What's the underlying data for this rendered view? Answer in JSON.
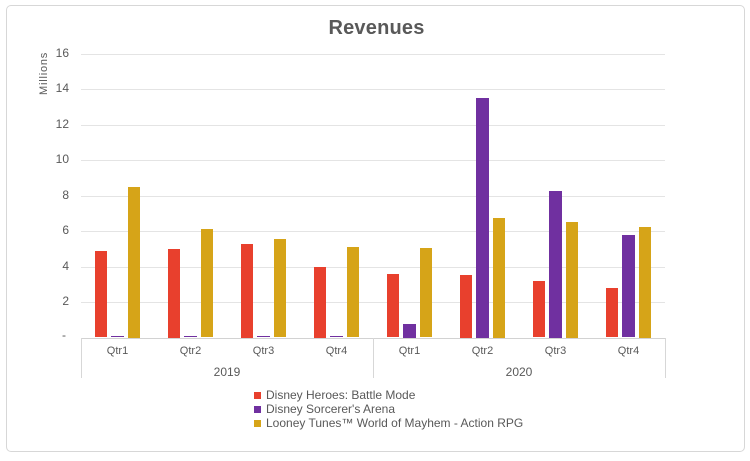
{
  "chart_data": {
    "type": "bar",
    "title": "Revenues",
    "ylabel": "Millions",
    "xlabel": "",
    "ylim": [
      0,
      16
    ],
    "ytick_step": 2,
    "zero_tick_label": "-",
    "grid": true,
    "legend_position": "bottom-left-aligned-block",
    "categories": [
      "Qtr1",
      "Qtr2",
      "Qtr3",
      "Qtr4",
      "Qtr1",
      "Qtr2",
      "Qtr3",
      "Qtr4"
    ],
    "year_groups": [
      {
        "label": "2019",
        "span": [
          0,
          3
        ]
      },
      {
        "label": "2020",
        "span": [
          4,
          7
        ]
      }
    ],
    "series": [
      {
        "name": "Disney Heroes: Battle Mode",
        "color": "#e8402d",
        "values": [
          4.85,
          5.0,
          5.25,
          4.0,
          3.6,
          3.5,
          3.2,
          2.8
        ]
      },
      {
        "name": "Disney Sorcerer's Arena",
        "color": "#7030a0",
        "values": [
          0.1,
          0.1,
          0.1,
          0.1,
          0.75,
          13.5,
          8.25,
          5.8
        ]
      },
      {
        "name": "Looney Tunes™ World of Mayhem - Action RPG",
        "color": "#d6a418",
        "values": [
          8.5,
          6.1,
          5.55,
          5.1,
          5.05,
          6.75,
          6.5,
          6.25
        ]
      }
    ],
    "colors": {
      "title_text": "#595959",
      "axis_text": "#595959",
      "gridline": "#e4e4e4",
      "axis_line": "#d2d2d2",
      "card_border": "#d7d7d7",
      "background": "#ffffff"
    }
  }
}
